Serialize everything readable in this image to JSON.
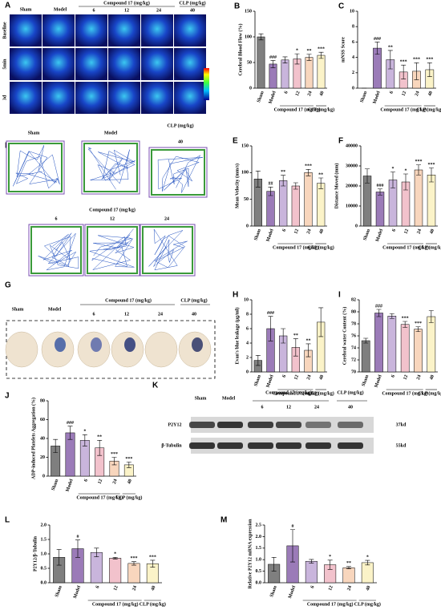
{
  "panels": {
    "A": {
      "label": "A",
      "header": [
        "Sham",
        "Model"
      ],
      "group": "Compound 17 (mg/kg)",
      "doses": [
        "6",
        "12",
        "24"
      ],
      "clp": "CLP (mg/kg)",
      "clp_dose": "40",
      "rows": [
        "Baseline",
        "5min",
        "3d"
      ]
    },
    "D": {
      "label": "D",
      "header": [
        "Sham",
        "Model"
      ],
      "clp": "CLP (mg/kg)",
      "clp_dose": "40",
      "group": "Compound 17 (mg/kg)",
      "doses": [
        "6",
        "12",
        "24"
      ]
    },
    "G": {
      "label": "G",
      "header": [
        "Sham",
        "Model"
      ],
      "group": "Compound 17 (mg/kg)",
      "doses": [
        "6",
        "12",
        "24"
      ],
      "clp": "CLP (mg/kg)",
      "clp_dose": "40"
    },
    "K": {
      "label": "K",
      "header": [
        "Sham",
        "Model"
      ],
      "group": "Compound 17 (mg/kg)",
      "doses": [
        "6",
        "12",
        "24"
      ],
      "clp": "CLP (mg/kg)",
      "clp_dose": "40",
      "bands": [
        "P2Y12",
        "β-Tubulin"
      ],
      "sizes": [
        "37kd",
        "55kd"
      ]
    }
  },
  "chart_data": [
    {
      "type": "bar",
      "panel": "B",
      "ylabel": "Cerebral Blood Flow (%)",
      "categories": [
        "Sham",
        "Model",
        "6",
        "12",
        "24",
        "40"
      ],
      "group_labels": [
        "Compound 17 (mg/kg)",
        "CLP (mg/kg)"
      ],
      "colors": [
        "#7f7f7f",
        "#9b7bb8",
        "#c9b5dc",
        "#f2c2cc",
        "#f8d6bd",
        "#fbf3c8"
      ],
      "values": [
        100,
        47,
        55,
        57,
        60,
        64
      ],
      "errors": [
        6,
        7,
        6,
        10,
        6,
        6
      ],
      "annotations": [
        null,
        "###",
        null,
        "*",
        "**",
        "***"
      ],
      "ylim": [
        0,
        150
      ],
      "yticks": [
        0,
        50,
        100,
        150
      ]
    },
    {
      "type": "bar",
      "panel": "C",
      "ylabel": "mNSS Score",
      "categories": [
        "Sham",
        "Model",
        "6",
        "12",
        "24",
        "40"
      ],
      "group_labels": [
        "Compound 17 (mg/kg)",
        "CLP (mg/kg)"
      ],
      "colors": [
        "#7f7f7f",
        "#9b7bb8",
        "#c9b5dc",
        "#f2c2cc",
        "#f8d6bd",
        "#fbf3c8"
      ],
      "values": [
        0,
        5.2,
        3.7,
        2.1,
        2.2,
        2.4
      ],
      "errors": [
        0,
        0.8,
        1.2,
        0.9,
        1.1,
        0.9
      ],
      "annotations": [
        null,
        "###",
        "**",
        "***",
        "***",
        "***"
      ],
      "ylim": [
        0,
        10
      ],
      "yticks": [
        0,
        2,
        4,
        6,
        8,
        10
      ]
    },
    {
      "type": "bar",
      "panel": "E",
      "ylabel": "Mean Velocity (mm/s)",
      "categories": [
        "Sham",
        "Model",
        "6",
        "12",
        "24",
        "40"
      ],
      "group_labels": [
        "Compound 17 (mg/kg)",
        "CLP (mg/kg)"
      ],
      "colors": [
        "#7f7f7f",
        "#9b7bb8",
        "#c9b5dc",
        "#f2c2cc",
        "#f8d6bd",
        "#fbf3c8"
      ],
      "values": [
        88,
        65,
        85,
        75,
        100,
        80
      ],
      "errors": [
        15,
        8,
        10,
        6,
        6,
        10
      ],
      "annotations": [
        null,
        "##",
        "**",
        null,
        "***",
        "**"
      ],
      "ylim": [
        0,
        150
      ],
      "yticks": [
        0,
        50,
        100,
        150
      ]
    },
    {
      "type": "bar",
      "panel": "F",
      "ylabel": "Distance Moved (mm)",
      "categories": [
        "Sham",
        "Model",
        "6",
        "12",
        "24",
        "40"
      ],
      "group_labels": [
        "Compound 17 (mg/kg)",
        "CLP (mg/kg)"
      ],
      "colors": [
        "#7f7f7f",
        "#9b7bb8",
        "#c9b5dc",
        "#f2c2cc",
        "#f8d6bd",
        "#fbf3c8"
      ],
      "values": [
        25000,
        17000,
        23000,
        22000,
        28000,
        25500
      ],
      "errors": [
        3500,
        1500,
        4000,
        4000,
        2500,
        3500
      ],
      "annotations": [
        null,
        "###",
        "*",
        "*",
        "***",
        "***"
      ],
      "ylim": [
        0,
        40000
      ],
      "yticks": [
        0,
        10000,
        20000,
        30000,
        40000
      ]
    },
    {
      "type": "bar",
      "panel": "H",
      "ylabel": "Evan's blue leakage (μg/ml)",
      "categories": [
        "Sham",
        "Model",
        "6",
        "12",
        "24",
        "40"
      ],
      "group_labels": [
        "Compound 17 (mg/kg)",
        "CLP (mg/kg)"
      ],
      "colors": [
        "#7f7f7f",
        "#9b7bb8",
        "#c9b5dc",
        "#f2c2cc",
        "#f8d6bd",
        "#fbf3c8"
      ],
      "values": [
        1.6,
        6.0,
        5.0,
        3.4,
        3.0,
        6.9
      ],
      "errors": [
        0.7,
        1.7,
        1.0,
        1.2,
        0.9,
        2.0
      ],
      "annotations": [
        null,
        "###",
        null,
        "**",
        "**",
        null
      ],
      "ylim": [
        0,
        10
      ],
      "yticks": [
        0,
        2,
        4,
        6,
        8,
        10
      ]
    },
    {
      "type": "bar",
      "panel": "I",
      "ylabel": "Cerebral water Content (%)",
      "categories": [
        "Sham",
        "Model",
        "6",
        "12",
        "24",
        "40"
      ],
      "group_labels": [
        "Compound 17 (mg/kg)",
        "CLP (mg/kg)"
      ],
      "colors": [
        "#7f7f7f",
        "#9b7bb8",
        "#c9b5dc",
        "#f2c2cc",
        "#f8d6bd",
        "#fbf3c8"
      ],
      "values": [
        75.2,
        79.8,
        79.3,
        77.9,
        77.1,
        79.2
      ],
      "errors": [
        0.4,
        0.6,
        0.4,
        0.5,
        0.4,
        1.0
      ],
      "annotations": [
        null,
        "###",
        null,
        "***",
        "***",
        null
      ],
      "ylim": [
        70,
        82
      ],
      "yticks": [
        70,
        72,
        74,
        76,
        78,
        80,
        82
      ]
    },
    {
      "type": "bar",
      "panel": "J",
      "ylabel": "ADP-induced Platelets Aggregation (%)",
      "categories": [
        "Sham",
        "Model",
        "6",
        "12",
        "24",
        "40"
      ],
      "group_labels": [
        "Compound 17 (mg/kg)",
        "CLP (mg/kg)"
      ],
      "colors": [
        "#7f7f7f",
        "#9b7bb8",
        "#c9b5dc",
        "#f2c2cc",
        "#f8d6bd",
        "#fbf3c8"
      ],
      "values": [
        32,
        46,
        38,
        30,
        16,
        12
      ],
      "errors": [
        7,
        7,
        6,
        8,
        4,
        3
      ],
      "annotations": [
        null,
        "###",
        "*",
        "**",
        "***",
        "***"
      ],
      "ylim": [
        0,
        80
      ],
      "yticks": [
        0,
        20,
        40,
        60,
        80
      ]
    },
    {
      "type": "bar",
      "panel": "L",
      "ylabel": "P2Y12/β-Tubulin",
      "categories": [
        "Sham",
        "Model",
        "6",
        "12",
        "24",
        "40"
      ],
      "group_labels": [
        "Compound 17 (mg/kg)",
        "CLP (mg/kg)"
      ],
      "colors": [
        "#7f7f7f",
        "#9b7bb8",
        "#c9b5dc",
        "#f2c2cc",
        "#f8d6bd",
        "#fbf3c8"
      ],
      "values": [
        0.88,
        1.18,
        1.05,
        0.85,
        0.67,
        0.66
      ],
      "errors": [
        0.27,
        0.3,
        0.15,
        0.03,
        0.06,
        0.12
      ],
      "annotations": [
        null,
        "#",
        null,
        "*",
        "***",
        "***"
      ],
      "ylim": [
        0,
        2
      ],
      "yticks": [
        {
          "value": 0,
          "label": "0.0"
        },
        0.5,
        {
          "value": 1,
          "label": "1.0"
        },
        1.5,
        {
          "value": 2,
          "label": "2.0"
        }
      ]
    },
    {
      "type": "bar",
      "panel": "M",
      "ylabel": "Relative P2Y12 mRNA expression",
      "categories": [
        "Sham",
        "Model",
        "6",
        "12",
        "24",
        "40"
      ],
      "group_labels": [
        "Compound 17 (mg/kg)",
        "CLP (mg/kg)"
      ],
      "colors": [
        "#7f7f7f",
        "#9b7bb8",
        "#c9b5dc",
        "#f2c2cc",
        "#f8d6bd",
        "#fbf3c8"
      ],
      "values": [
        0.8,
        1.6,
        0.93,
        0.78,
        0.65,
        0.87
      ],
      "errors": [
        0.3,
        0.7,
        0.08,
        0.2,
        0.05,
        0.1
      ],
      "annotations": [
        null,
        "#",
        null,
        "*",
        "**",
        "*"
      ],
      "ylim": [
        0,
        2.5
      ],
      "yticks": [
        {
          "value": 0,
          "label": "0.0"
        },
        0.5,
        {
          "value": 1,
          "label": "1.0"
        },
        1.5,
        {
          "value": 2,
          "label": "2.0"
        },
        2.5
      ]
    }
  ]
}
